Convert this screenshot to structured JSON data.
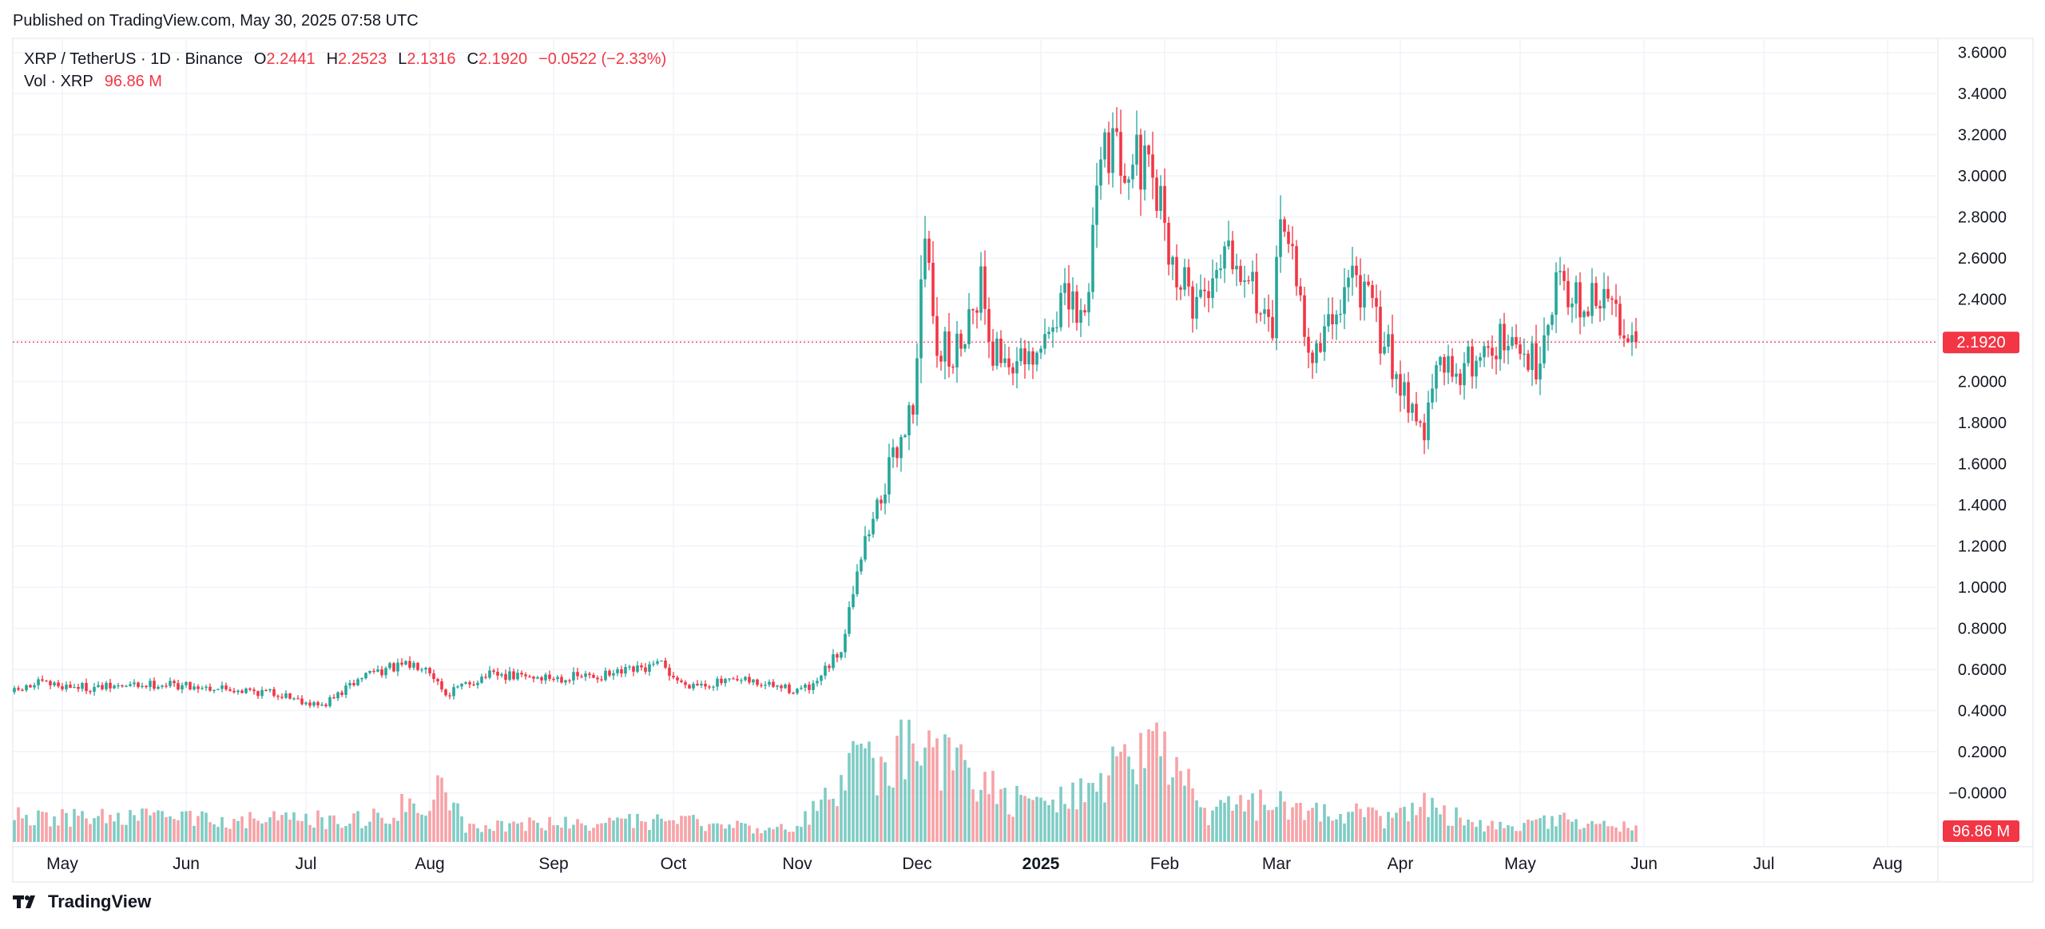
{
  "header": {
    "published": "Published on TradingView.com, May 30, 2025 07:58 UTC"
  },
  "legend": {
    "symbol": "XRP / TetherUS · 1D · Binance",
    "o_label": "O",
    "o_value": "2.2441",
    "h_label": "H",
    "h_value": "2.2523",
    "l_label": "L",
    "l_value": "2.1316",
    "c_label": "C",
    "c_value": "2.1920",
    "change": "−0.0522 (−2.33%)",
    "vol_label": "Vol · XRP",
    "vol_value": "96.86 M"
  },
  "footer": {
    "brand": "TradingView"
  },
  "colors": {
    "up": "#26a69a",
    "down": "#f23645",
    "up_volume": "#7fccc4",
    "down_volume": "#f7a2a7",
    "grid": "#f0f3fa",
    "text": "#131722",
    "border": "#e0e3eb"
  },
  "chart_data": {
    "type": "candlestick",
    "title": "XRP / TetherUS · 1D · Binance",
    "start_date": "2024-04-19",
    "end_date": "2025-05-30",
    "y_axis": {
      "ticks": [
        "3.6000",
        "3.4000",
        "3.2000",
        "3.0000",
        "2.8000",
        "2.6000",
        "2.4000",
        "2.2000",
        "2.0000",
        "1.8000",
        "1.6000",
        "1.4000",
        "1.2000",
        "1.0000",
        "0.8000",
        "0.6000",
        "0.4000",
        "0.2000",
        "−0.0000"
      ],
      "tick_values": [
        3.6,
        3.4,
        3.2,
        3.0,
        2.8,
        2.6,
        2.4,
        2.2,
        2.0,
        1.8,
        1.6,
        1.4,
        1.2,
        1.0,
        0.8,
        0.6,
        0.4,
        0.2,
        0.0
      ],
      "range": [
        -0.2,
        3.7
      ]
    },
    "x_axis": {
      "ticks": [
        {
          "label": "May",
          "date": "2024-05-01",
          "bold": false
        },
        {
          "label": "Jun",
          "date": "2024-06-01",
          "bold": false
        },
        {
          "label": "Jul",
          "date": "2024-07-01",
          "bold": false
        },
        {
          "label": "Aug",
          "date": "2024-08-01",
          "bold": false
        },
        {
          "label": "Sep",
          "date": "2024-09-01",
          "bold": false
        },
        {
          "label": "Oct",
          "date": "2024-10-01",
          "bold": false
        },
        {
          "label": "Nov",
          "date": "2024-11-01",
          "bold": false
        },
        {
          "label": "Dec",
          "date": "2024-12-01",
          "bold": false
        },
        {
          "label": "2025",
          "date": "2025-01-01",
          "bold": true
        },
        {
          "label": "Feb",
          "date": "2025-02-01",
          "bold": false
        },
        {
          "label": "Mar",
          "date": "2025-03-01",
          "bold": false
        },
        {
          "label": "Apr",
          "date": "2025-04-01",
          "bold": false
        },
        {
          "label": "May",
          "date": "2025-05-01",
          "bold": false
        },
        {
          "label": "Jun",
          "date": "2025-06-01",
          "bold": false
        },
        {
          "label": "Jul",
          "date": "2025-07-01",
          "bold": false
        },
        {
          "label": "Aug",
          "date": "2025-08-01",
          "bold": false
        }
      ]
    },
    "last_price": {
      "value": 2.192,
      "label": "2.1920"
    },
    "last_volume": {
      "label": "96.86 M"
    },
    "volume_unit": "M XRP",
    "price_anchors": [
      {
        "date": "2024-04-19",
        "price": 0.49
      },
      {
        "date": "2024-04-25",
        "price": 0.53
      },
      {
        "date": "2024-05-10",
        "price": 0.51
      },
      {
        "date": "2024-05-25",
        "price": 0.53
      },
      {
        "date": "2024-06-10",
        "price": 0.51
      },
      {
        "date": "2024-06-25",
        "price": 0.48
      },
      {
        "date": "2024-07-05",
        "price": 0.42
      },
      {
        "date": "2024-07-17",
        "price": 0.59
      },
      {
        "date": "2024-07-31",
        "price": 0.63
      },
      {
        "date": "2024-08-05",
        "price": 0.48
      },
      {
        "date": "2024-08-15",
        "price": 0.57
      },
      {
        "date": "2024-09-01",
        "price": 0.56
      },
      {
        "date": "2024-09-15",
        "price": 0.57
      },
      {
        "date": "2024-09-28",
        "price": 0.62
      },
      {
        "date": "2024-10-03",
        "price": 0.53
      },
      {
        "date": "2024-10-20",
        "price": 0.54
      },
      {
        "date": "2024-10-31",
        "price": 0.5
      },
      {
        "date": "2024-11-05",
        "price": 0.51
      },
      {
        "date": "2024-11-12",
        "price": 0.7
      },
      {
        "date": "2024-11-16",
        "price": 1.1
      },
      {
        "date": "2024-11-22",
        "price": 1.45
      },
      {
        "date": "2024-11-30",
        "price": 1.9
      },
      {
        "date": "2024-12-03",
        "price": 2.7
      },
      {
        "date": "2024-12-06",
        "price": 2.2
      },
      {
        "date": "2024-12-10",
        "price": 2.1
      },
      {
        "date": "2024-12-17",
        "price": 2.5
      },
      {
        "date": "2024-12-20",
        "price": 2.15
      },
      {
        "date": "2024-12-30",
        "price": 2.05
      },
      {
        "date": "2025-01-06",
        "price": 2.4
      },
      {
        "date": "2025-01-12",
        "price": 2.3
      },
      {
        "date": "2025-01-16",
        "price": 3.2
      },
      {
        "date": "2025-01-20",
        "price": 3.1
      },
      {
        "date": "2025-01-25",
        "price": 3.1
      },
      {
        "date": "2025-02-01",
        "price": 2.8
      },
      {
        "date": "2025-02-03",
        "price": 2.55
      },
      {
        "date": "2025-02-08",
        "price": 2.4
      },
      {
        "date": "2025-02-12",
        "price": 2.45
      },
      {
        "date": "2025-02-16",
        "price": 2.7
      },
      {
        "date": "2025-02-22",
        "price": 2.55
      },
      {
        "date": "2025-02-28",
        "price": 2.15
      },
      {
        "date": "2025-03-02",
        "price": 2.9
      },
      {
        "date": "2025-03-05",
        "price": 2.55
      },
      {
        "date": "2025-03-10",
        "price": 2.1
      },
      {
        "date": "2025-03-16",
        "price": 2.35
      },
      {
        "date": "2025-03-20",
        "price": 2.55
      },
      {
        "date": "2025-03-30",
        "price": 2.1
      },
      {
        "date": "2025-04-07",
        "price": 1.75
      },
      {
        "date": "2025-04-10",
        "price": 2.05
      },
      {
        "date": "2025-04-18",
        "price": 2.08
      },
      {
        "date": "2025-04-25",
        "price": 2.2
      },
      {
        "date": "2025-05-05",
        "price": 2.1
      },
      {
        "date": "2025-05-11",
        "price": 2.55
      },
      {
        "date": "2025-05-16",
        "price": 2.35
      },
      {
        "date": "2025-05-22",
        "price": 2.4
      },
      {
        "date": "2025-05-27",
        "price": 2.3
      },
      {
        "date": "2025-05-30",
        "price": 2.19
      }
    ],
    "volume_anchors": [
      {
        "date": "2024-04-19",
        "volume": 180
      },
      {
        "date": "2024-07-15",
        "volume": 160
      },
      {
        "date": "2024-08-05",
        "volume": 380
      },
      {
        "date": "2024-08-10",
        "volume": 120
      },
      {
        "date": "2024-10-01",
        "volume": 150
      },
      {
        "date": "2024-10-31",
        "volume": 90
      },
      {
        "date": "2024-11-12",
        "volume": 420
      },
      {
        "date": "2024-11-16",
        "volume": 620
      },
      {
        "date": "2024-11-22",
        "volume": 500
      },
      {
        "date": "2024-12-03",
        "volume": 780
      },
      {
        "date": "2024-12-10",
        "volume": 560
      },
      {
        "date": "2024-12-30",
        "volume": 220
      },
      {
        "date": "2025-01-16",
        "volume": 500
      },
      {
        "date": "2025-02-03",
        "volume": 650
      },
      {
        "date": "2025-02-10",
        "volume": 200
      },
      {
        "date": "2025-03-02",
        "volume": 300
      },
      {
        "date": "2025-03-30",
        "volume": 160
      },
      {
        "date": "2025-04-07",
        "volume": 300
      },
      {
        "date": "2025-04-20",
        "volume": 110
      },
      {
        "date": "2025-05-11",
        "volume": 160
      },
      {
        "date": "2025-05-30",
        "volume": 97
      }
    ]
  }
}
